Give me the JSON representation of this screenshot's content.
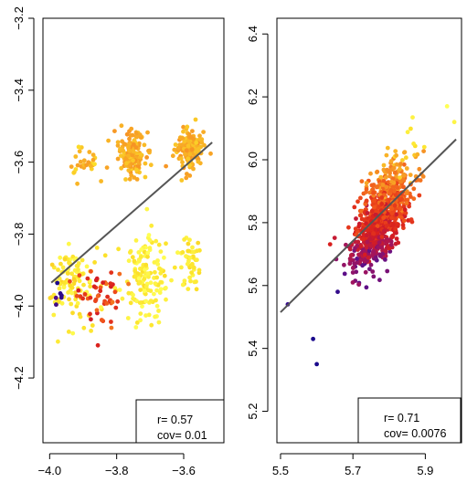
{
  "chart_data": [
    {
      "type": "scatter",
      "title": "",
      "xlabel": "",
      "ylabel": "",
      "xlim": [
        -4.02,
        -3.48
      ],
      "ylim": [
        -4.38,
        -3.2
      ],
      "xticks": [
        -4.0,
        -3.8,
        -3.6
      ],
      "xtick_labels": [
        "−4.0",
        "−3.8",
        "−3.6"
      ],
      "yticks": [
        -3.2,
        -3.4,
        -3.6,
        -3.8,
        -4.0,
        -4.2
      ],
      "ytick_labels": [
        "−3.2",
        "−3.4",
        "−3.6",
        "−3.8",
        "−4.0",
        "−4.2"
      ],
      "fit_line": {
        "x": [
          -3.995,
          -3.515
        ],
        "y": [
          -3.935,
          -3.545
        ]
      },
      "legend_position": "bottom-right",
      "stats": {
        "r": "r= 0.57",
        "cov": "cov= 0.01"
      },
      "colormap": [
        "#1a0a8c",
        "#5a0f8a",
        "#a0145e",
        "#d81e1e",
        "#f0501a",
        "#f79a25",
        "#fce028",
        "#ffff55"
      ],
      "clusters": [
        {
          "cx": -3.755,
          "cy": -3.575,
          "sx": 0.02,
          "sy": 0.03,
          "n": 170,
          "c": [
            0.7,
            0.82
          ]
        },
        {
          "cx": -3.585,
          "cy": -3.565,
          "sx": 0.02,
          "sy": 0.03,
          "n": 150,
          "c": [
            0.7,
            0.82
          ]
        },
        {
          "cx": -3.9,
          "cy": -3.6,
          "sx": 0.03,
          "sy": 0.02,
          "n": 30,
          "c": [
            0.72,
            0.86
          ]
        },
        {
          "cx": -3.72,
          "cy": -3.92,
          "sx": 0.04,
          "sy": 0.06,
          "n": 150,
          "c": [
            0.85,
            1.0
          ]
        },
        {
          "cx": -3.93,
          "cy": -3.93,
          "sx": 0.04,
          "sy": 0.05,
          "n": 110,
          "c": [
            0.82,
            0.98
          ]
        },
        {
          "cx": -3.58,
          "cy": -3.88,
          "sx": 0.015,
          "sy": 0.04,
          "n": 45,
          "c": [
            0.84,
            0.95
          ]
        },
        {
          "cx": -3.85,
          "cy": -3.98,
          "sx": 0.04,
          "sy": 0.04,
          "n": 50,
          "c": [
            0.4,
            0.65
          ]
        },
        {
          "cx": -3.97,
          "cy": -3.97,
          "sx": 0.012,
          "sy": 0.015,
          "n": 6,
          "c": [
            0.0,
            0.15
          ]
        }
      ]
    },
    {
      "type": "scatter",
      "title": "",
      "xlabel": "",
      "ylabel": "",
      "xlim": [
        5.49,
        6.0
      ],
      "ylim": [
        5.1,
        6.45
      ],
      "xticks": [
        5.5,
        5.7,
        5.9
      ],
      "xtick_labels": [
        "5.5",
        "5.7",
        "5.9"
      ],
      "yticks": [
        5.2,
        5.4,
        5.6,
        5.8,
        6.0,
        6.2,
        6.4
      ],
      "ytick_labels": [
        "5.2",
        "5.4",
        "5.6",
        "5.8",
        "6.0",
        "6.2",
        "6.4"
      ],
      "fit_line": {
        "x": [
          5.5,
          5.985
        ],
        "y": [
          5.515,
          6.065
        ]
      },
      "legend_position": "bottom-right",
      "stats": {
        "r": "r= 0.71",
        "cov": "cov= 0.0076"
      },
      "colormap": [
        "#1a0a8c",
        "#5a0f8a",
        "#a0145e",
        "#d81e1e",
        "#f0501a",
        "#f79a25",
        "#fce028",
        "#ffff55"
      ],
      "distribution": {
        "center": [
          5.78,
          5.82
        ],
        "n": 900,
        "sd_along": 0.085,
        "sd_across": 0.03,
        "direction": [
          0.3313,
          0.9435
        ],
        "outliers": [
          [
            5.6,
            5.35
          ],
          [
            5.59,
            5.43
          ],
          [
            5.52,
            5.54
          ],
          [
            5.96,
            6.17
          ],
          [
            5.98,
            6.12
          ]
        ]
      }
    }
  ]
}
